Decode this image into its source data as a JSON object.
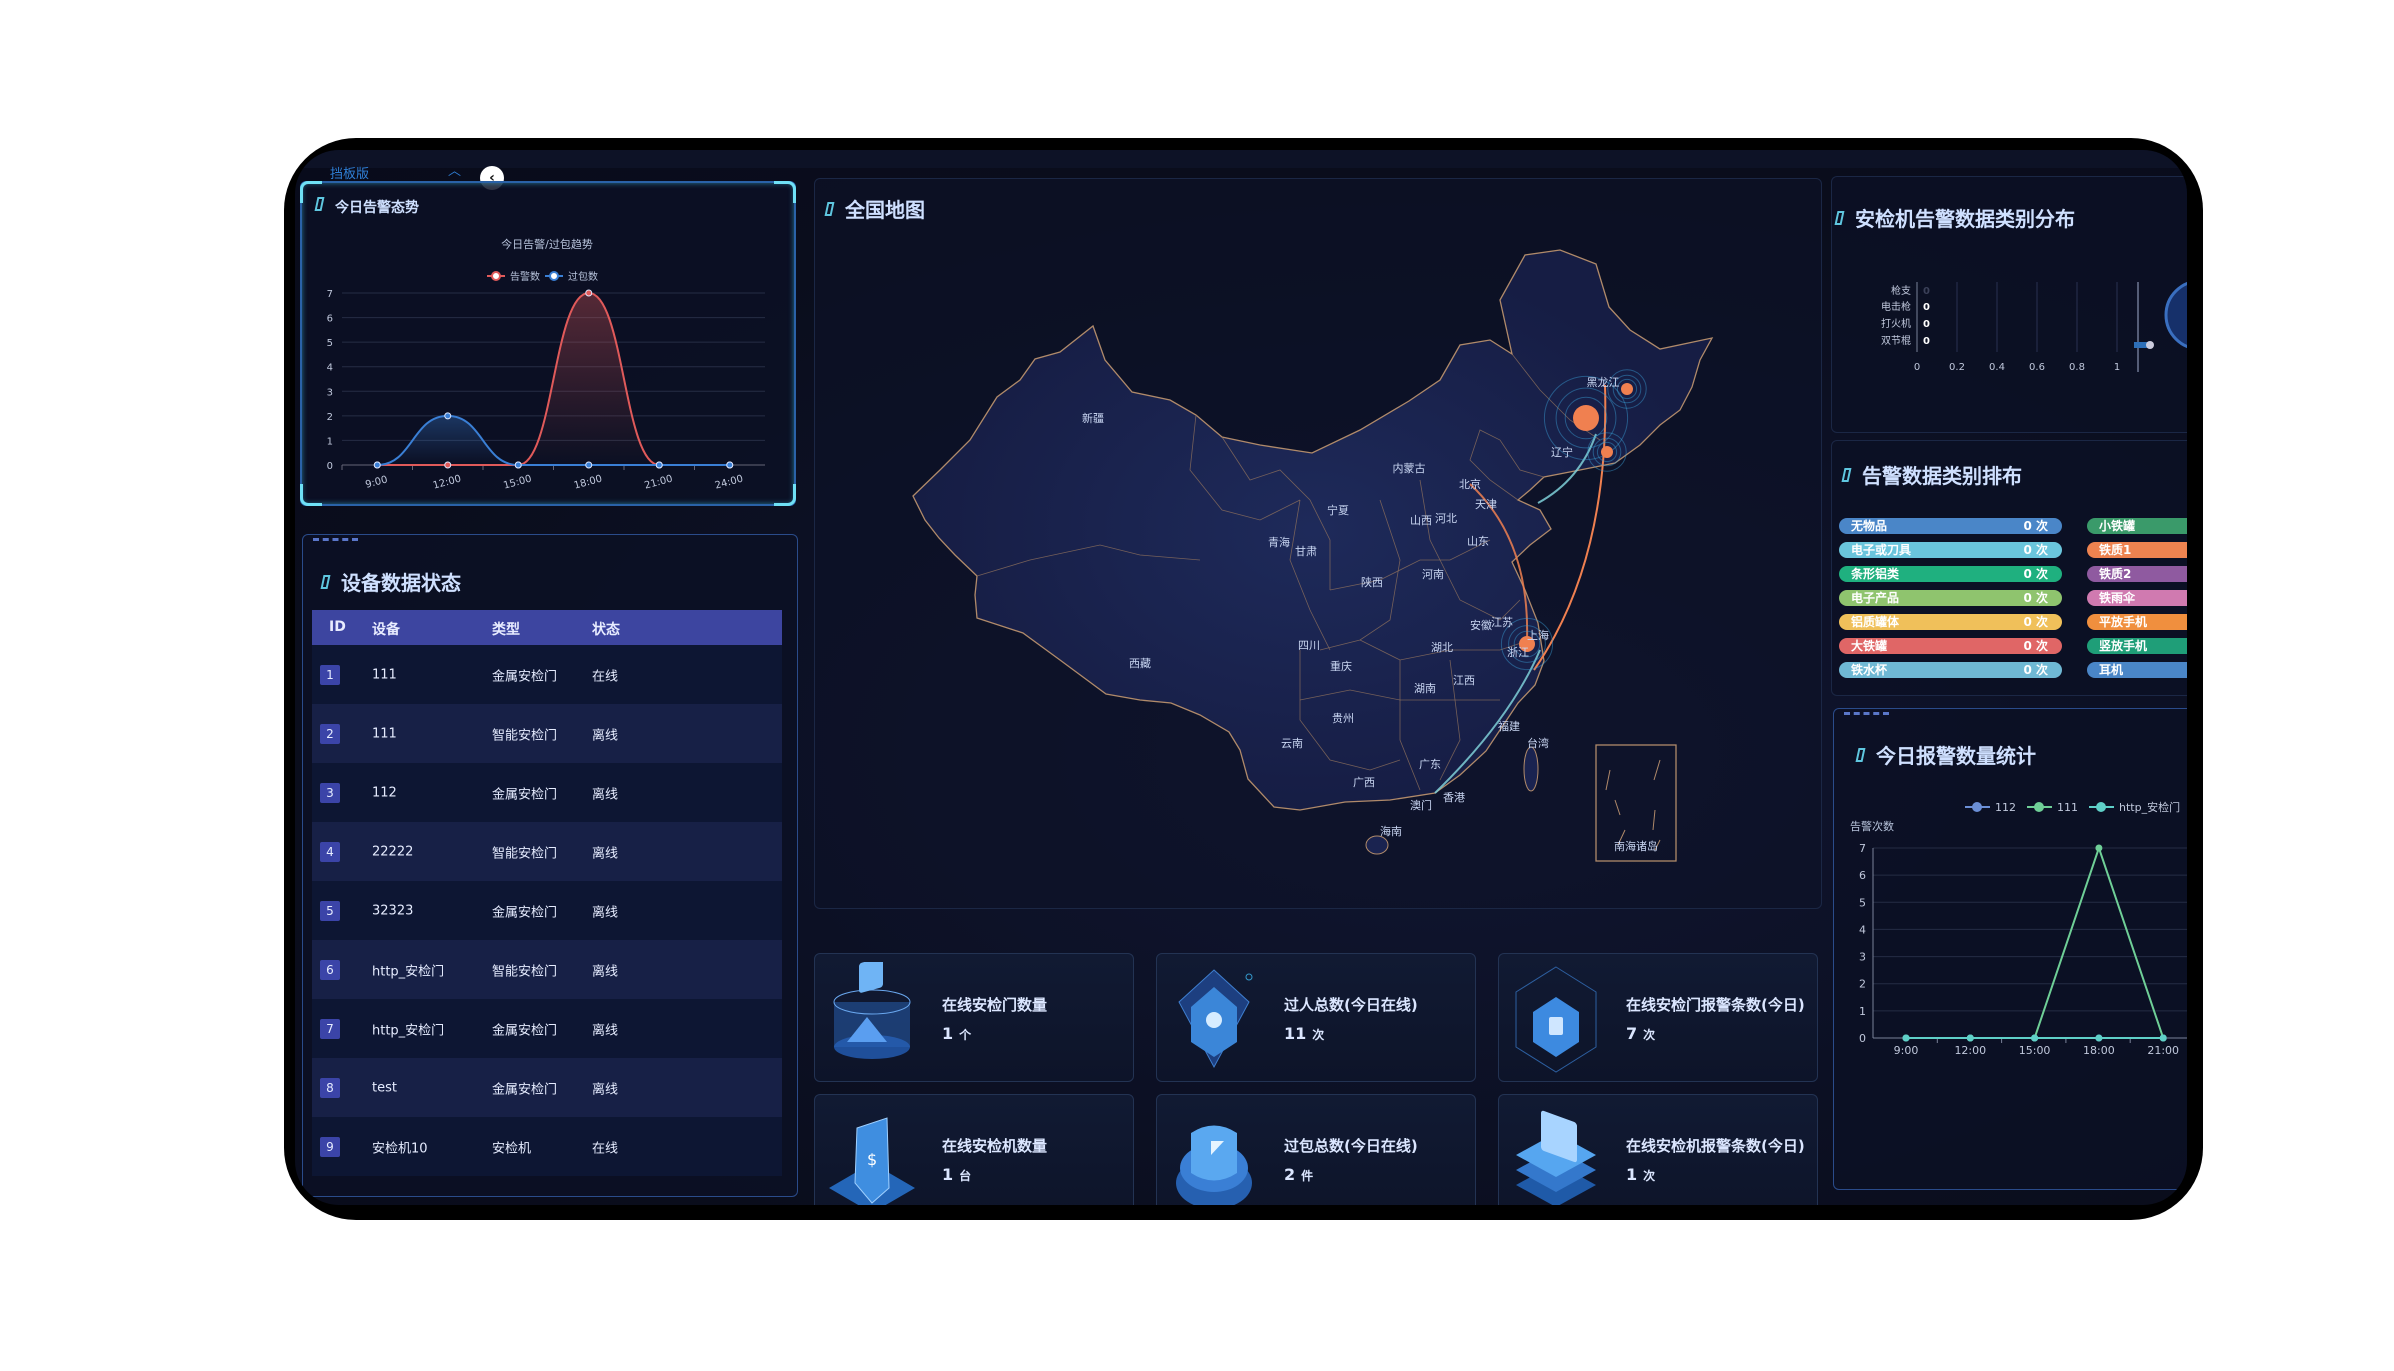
{
  "topbar": {
    "tab_label": "挡板版",
    "collapse_icon": "chevron-up-icon",
    "back_icon": "chevron-left-icon"
  },
  "alert_trend": {
    "title": "今日告警态势"
  },
  "device_status": {
    "title": "设备数据状态",
    "columns": [
      "ID",
      "设备",
      "类型",
      "状态"
    ],
    "rows": [
      {
        "id": "1",
        "device": "111",
        "type": "金属安检门",
        "status": "在线"
      },
      {
        "id": "2",
        "device": "111",
        "type": "智能安检门",
        "status": "离线"
      },
      {
        "id": "3",
        "device": "112",
        "type": "金属安检门",
        "status": "离线"
      },
      {
        "id": "4",
        "device": "22222",
        "type": "智能安检门",
        "status": "离线"
      },
      {
        "id": "5",
        "device": "32323",
        "type": "金属安检门",
        "status": "离线"
      },
      {
        "id": "6",
        "device": "http_安检门",
        "type": "智能安检门",
        "status": "离线"
      },
      {
        "id": "7",
        "device": "http_安检门",
        "type": "金属安检门",
        "status": "离线"
      },
      {
        "id": "8",
        "device": "test",
        "type": "金属安检门",
        "status": "离线"
      },
      {
        "id": "9",
        "device": "安检机10",
        "type": "安检机",
        "status": "在线"
      }
    ]
  },
  "map": {
    "title": "全国地图",
    "provinces": [
      "新疆",
      "西藏",
      "青海",
      "甘肃",
      "宁夏",
      "内蒙古",
      "黑龙江",
      "辽宁",
      "北京",
      "天津",
      "山西",
      "河北",
      "山东",
      "陕西",
      "河南",
      "四川",
      "重庆",
      "湖北",
      "安徽",
      "江苏",
      "上海",
      "浙江",
      "湖南",
      "江西",
      "贵州",
      "云南",
      "广西",
      "广东",
      "福建",
      "台湾",
      "香港",
      "澳门",
      "海南"
    ],
    "inset_label": "南海诸岛",
    "marker_color": "#f08050",
    "flow_colors": [
      "#f08050",
      "#7fd0d8"
    ]
  },
  "stats": [
    {
      "label": "在线安检门数量",
      "value": "1",
      "unit": "个",
      "icon": "security-gate-icon"
    },
    {
      "label": "过人总数(今日在线)",
      "value": "11",
      "unit": "次",
      "icon": "person-scan-icon"
    },
    {
      "label": "在线安检门报警条数(今日)",
      "value": "7",
      "unit": "次",
      "icon": "cube-grid-icon"
    },
    {
      "label": "在线安检机数量",
      "value": "1",
      "unit": "台",
      "icon": "shield-icon"
    },
    {
      "label": "过包总数(今日在线)",
      "value": "2",
      "unit": "件",
      "icon": "bag-icon"
    },
    {
      "label": "在线安检机报警条数(今日)",
      "value": "1",
      "unit": "次",
      "icon": "layers-icon"
    }
  ],
  "category_dist": {
    "title": "安检机告警数据类别分布"
  },
  "category_rank": {
    "title": "告警数据类别排布",
    "left": [
      {
        "name": "无物品",
        "count": "0 次",
        "color": "#4a86c8"
      },
      {
        "name": "电子或刀具",
        "count": "0 次",
        "color": "#6ac5dc"
      },
      {
        "name": "条形铝类",
        "count": "0 次",
        "color": "#1fb07f"
      },
      {
        "name": "电子产品",
        "count": "0 次",
        "color": "#8fc46e"
      },
      {
        "name": "铝质罐体",
        "count": "0 次",
        "color": "#f0c05a"
      },
      {
        "name": "大铁罐",
        "count": "0 次",
        "color": "#e06666"
      },
      {
        "name": "铁水杯",
        "count": "0 次",
        "color": "#6fb8d4"
      }
    ],
    "right": [
      {
        "name": "小铁罐",
        "color": "#3a9a6a"
      },
      {
        "name": "铁质1",
        "color": "#ee8350"
      },
      {
        "name": "铁质2",
        "color": "#8f5aa0"
      },
      {
        "name": "铁雨伞",
        "color": "#d07ab0"
      },
      {
        "name": "平放手机",
        "color": "#f08f3e"
      },
      {
        "name": "竖放手机",
        "color": "#1f9e78"
      },
      {
        "name": "耳机",
        "color": "#4a86c8"
      }
    ]
  },
  "alarm_stats": {
    "title": "今日报警数量统计"
  },
  "chart_data": [
    {
      "type": "line",
      "smooth": true,
      "area": true,
      "title": "今日告警/过包趋势",
      "categories": [
        "9:00",
        "12:00",
        "15:00",
        "18:00",
        "21:00",
        "24:00"
      ],
      "series": [
        {
          "name": "告警数",
          "values": [
            0,
            0,
            0,
            7,
            0,
            0
          ],
          "color": "#e05a5a"
        },
        {
          "name": "过包数",
          "values": [
            0,
            2,
            0,
            0,
            0,
            0
          ],
          "color": "#3a7fd5"
        }
      ],
      "ylim": [
        0,
        7
      ],
      "yticks": [
        "0",
        "1",
        "2",
        "3",
        "4",
        "5",
        "6",
        "7"
      ],
      "grid": true,
      "legend": "top"
    },
    {
      "type": "bar",
      "orientation": "horizontal",
      "categories": [
        "枪支",
        "电击枪",
        "打火机",
        "双节棍"
      ],
      "values": [
        0,
        0,
        0,
        0
      ],
      "xlim": [
        0,
        1
      ],
      "xticks": [
        "0",
        "0.2",
        "0.4",
        "0.6",
        "0.8",
        "1"
      ],
      "grid": true
    },
    {
      "type": "line",
      "ylabel": "告警次数",
      "categories": [
        "9:00",
        "12:00",
        "15:00",
        "18:00",
        "21:00"
      ],
      "series": [
        {
          "name": "112",
          "values": [
            0,
            0,
            0,
            0,
            0
          ],
          "color": "#6b8fd6"
        },
        {
          "name": "111",
          "values": [
            0,
            0,
            0,
            7,
            0
          ],
          "color": "#6fcf97"
        },
        {
          "name": "http_安检门",
          "values": [
            0,
            0,
            0,
            0,
            0
          ],
          "color": "#5fd0c8"
        }
      ],
      "ylim": [
        0,
        7
      ],
      "yticks": [
        "0",
        "1",
        "2",
        "3",
        "4",
        "5",
        "6",
        "7"
      ],
      "grid": true,
      "legend": "top"
    }
  ]
}
